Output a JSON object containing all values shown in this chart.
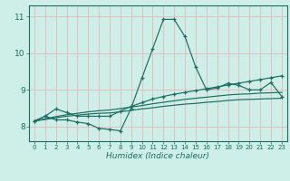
{
  "xlabel": "Humidex (Indice chaleur)",
  "bg_color": "#ceeee8",
  "line_color": "#1a6e62",
  "grid_color": "#e8b8b8",
  "xlim": [
    -0.5,
    23.5
  ],
  "ylim": [
    7.6,
    11.3
  ],
  "yticks": [
    8,
    9,
    10,
    11
  ],
  "xticks": [
    0,
    1,
    2,
    3,
    4,
    5,
    6,
    7,
    8,
    9,
    10,
    11,
    12,
    13,
    14,
    15,
    16,
    17,
    18,
    19,
    20,
    21,
    22,
    23
  ],
  "line1_x": [
    0,
    1,
    2,
    3,
    4,
    5,
    6,
    7,
    8,
    9,
    10,
    11,
    12,
    13,
    14,
    15,
    16,
    17,
    18,
    19,
    20,
    21,
    22,
    23
  ],
  "line1_y": [
    8.15,
    8.28,
    8.18,
    8.18,
    8.12,
    8.08,
    7.95,
    7.92,
    7.88,
    8.5,
    9.32,
    10.12,
    10.92,
    10.92,
    10.45,
    9.62,
    9.0,
    9.05,
    9.18,
    9.12,
    9.0,
    9.0,
    9.2,
    8.82
  ],
  "line2_x": [
    0,
    1,
    2,
    3,
    4,
    5,
    6,
    7,
    8,
    9,
    10,
    11,
    12,
    13,
    14,
    15,
    16,
    17,
    18,
    19,
    20,
    21,
    22,
    23
  ],
  "line2_y": [
    8.15,
    8.28,
    8.48,
    8.38,
    8.28,
    8.28,
    8.28,
    8.28,
    8.42,
    8.55,
    8.65,
    8.75,
    8.82,
    8.88,
    8.93,
    8.98,
    9.03,
    9.08,
    9.13,
    9.18,
    9.23,
    9.28,
    9.33,
    9.38
  ],
  "line3_x": [
    0,
    1,
    2,
    3,
    4,
    5,
    6,
    7,
    8,
    9,
    10,
    11,
    12,
    13,
    14,
    15,
    16,
    17,
    18,
    19,
    20,
    21,
    22,
    23
  ],
  "line3_y": [
    8.15,
    8.21,
    8.27,
    8.32,
    8.36,
    8.4,
    8.43,
    8.45,
    8.49,
    8.53,
    8.57,
    8.62,
    8.66,
    8.7,
    8.74,
    8.77,
    8.8,
    8.83,
    8.86,
    8.88,
    8.89,
    8.91,
    8.92,
    8.93
  ],
  "line4_x": [
    0,
    1,
    2,
    3,
    4,
    5,
    6,
    7,
    8,
    9,
    10,
    11,
    12,
    13,
    14,
    15,
    16,
    17,
    18,
    19,
    20,
    21,
    22,
    23
  ],
  "line4_y": [
    8.15,
    8.19,
    8.24,
    8.28,
    8.31,
    8.34,
    8.36,
    8.37,
    8.4,
    8.44,
    8.48,
    8.51,
    8.55,
    8.58,
    8.61,
    8.63,
    8.66,
    8.68,
    8.71,
    8.73,
    8.74,
    8.75,
    8.76,
    8.77
  ]
}
